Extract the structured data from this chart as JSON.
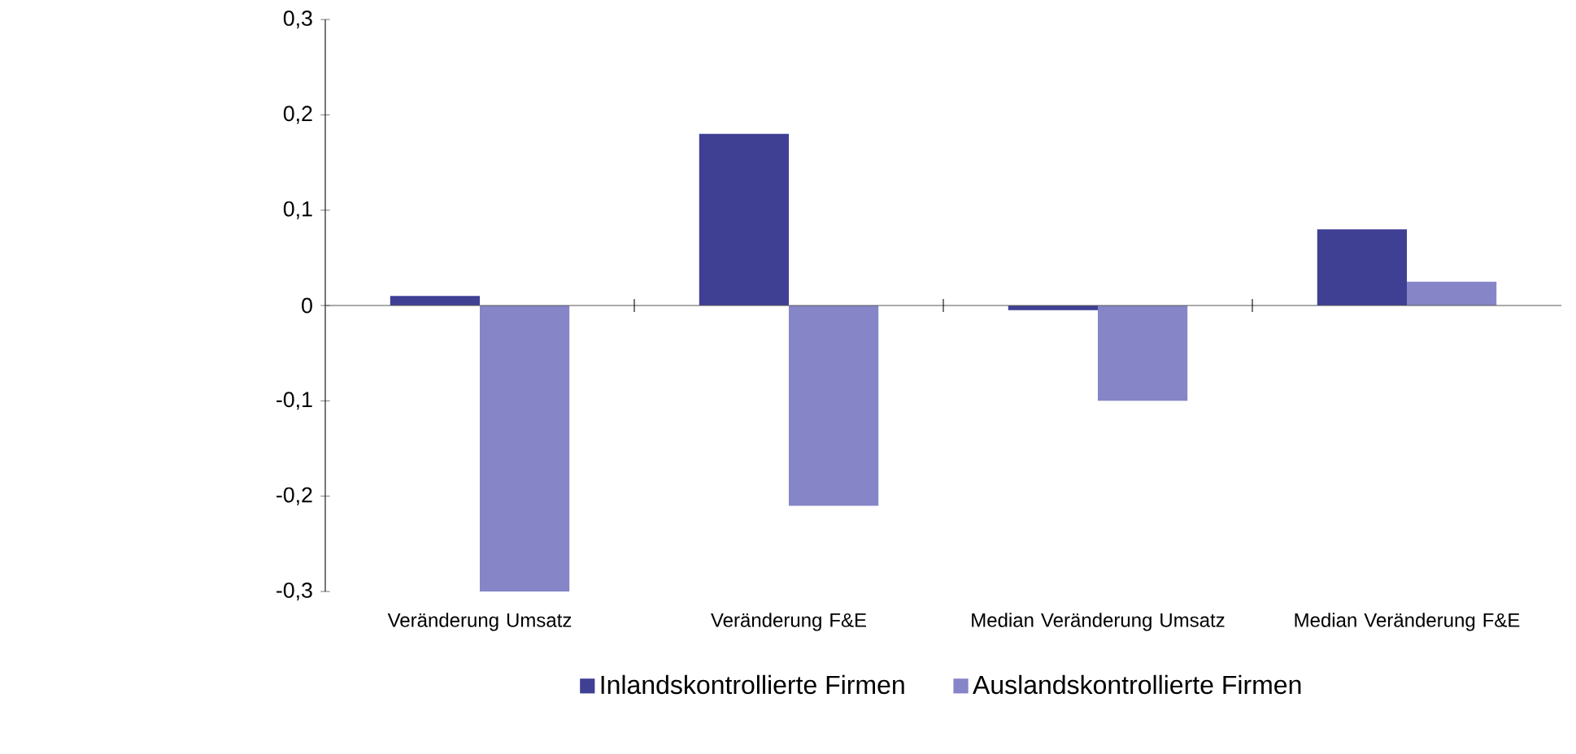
{
  "chart_data": {
    "type": "bar",
    "categories": [
      "Veränderung Umsatz",
      "Veränderung F&E",
      "Median Veränderung Umsatz",
      "Median Veränderung F&E"
    ],
    "series": [
      {
        "name": "Inlandskontrollierte Firmen",
        "color": "#3f3f94",
        "values": [
          0.01,
          0.18,
          -0.005,
          0.08
        ]
      },
      {
        "name": "Auslandskontrollierte Firmen",
        "color": "#8585c8",
        "values": [
          -0.3,
          -0.21,
          -0.1,
          0.025
        ]
      }
    ],
    "ylim": [
      -0.3,
      0.3
    ],
    "yticks": [
      {
        "value": -0.3,
        "label": "-0,3"
      },
      {
        "value": -0.2,
        "label": "-0,2"
      },
      {
        "value": -0.1,
        "label": "-0,1"
      },
      0,
      {
        "value": 0.1,
        "label": "0,1"
      },
      {
        "value": 0.2,
        "label": "0,2"
      },
      {
        "value": 0.3,
        "label": "0,3"
      }
    ],
    "legend": "bottom"
  }
}
